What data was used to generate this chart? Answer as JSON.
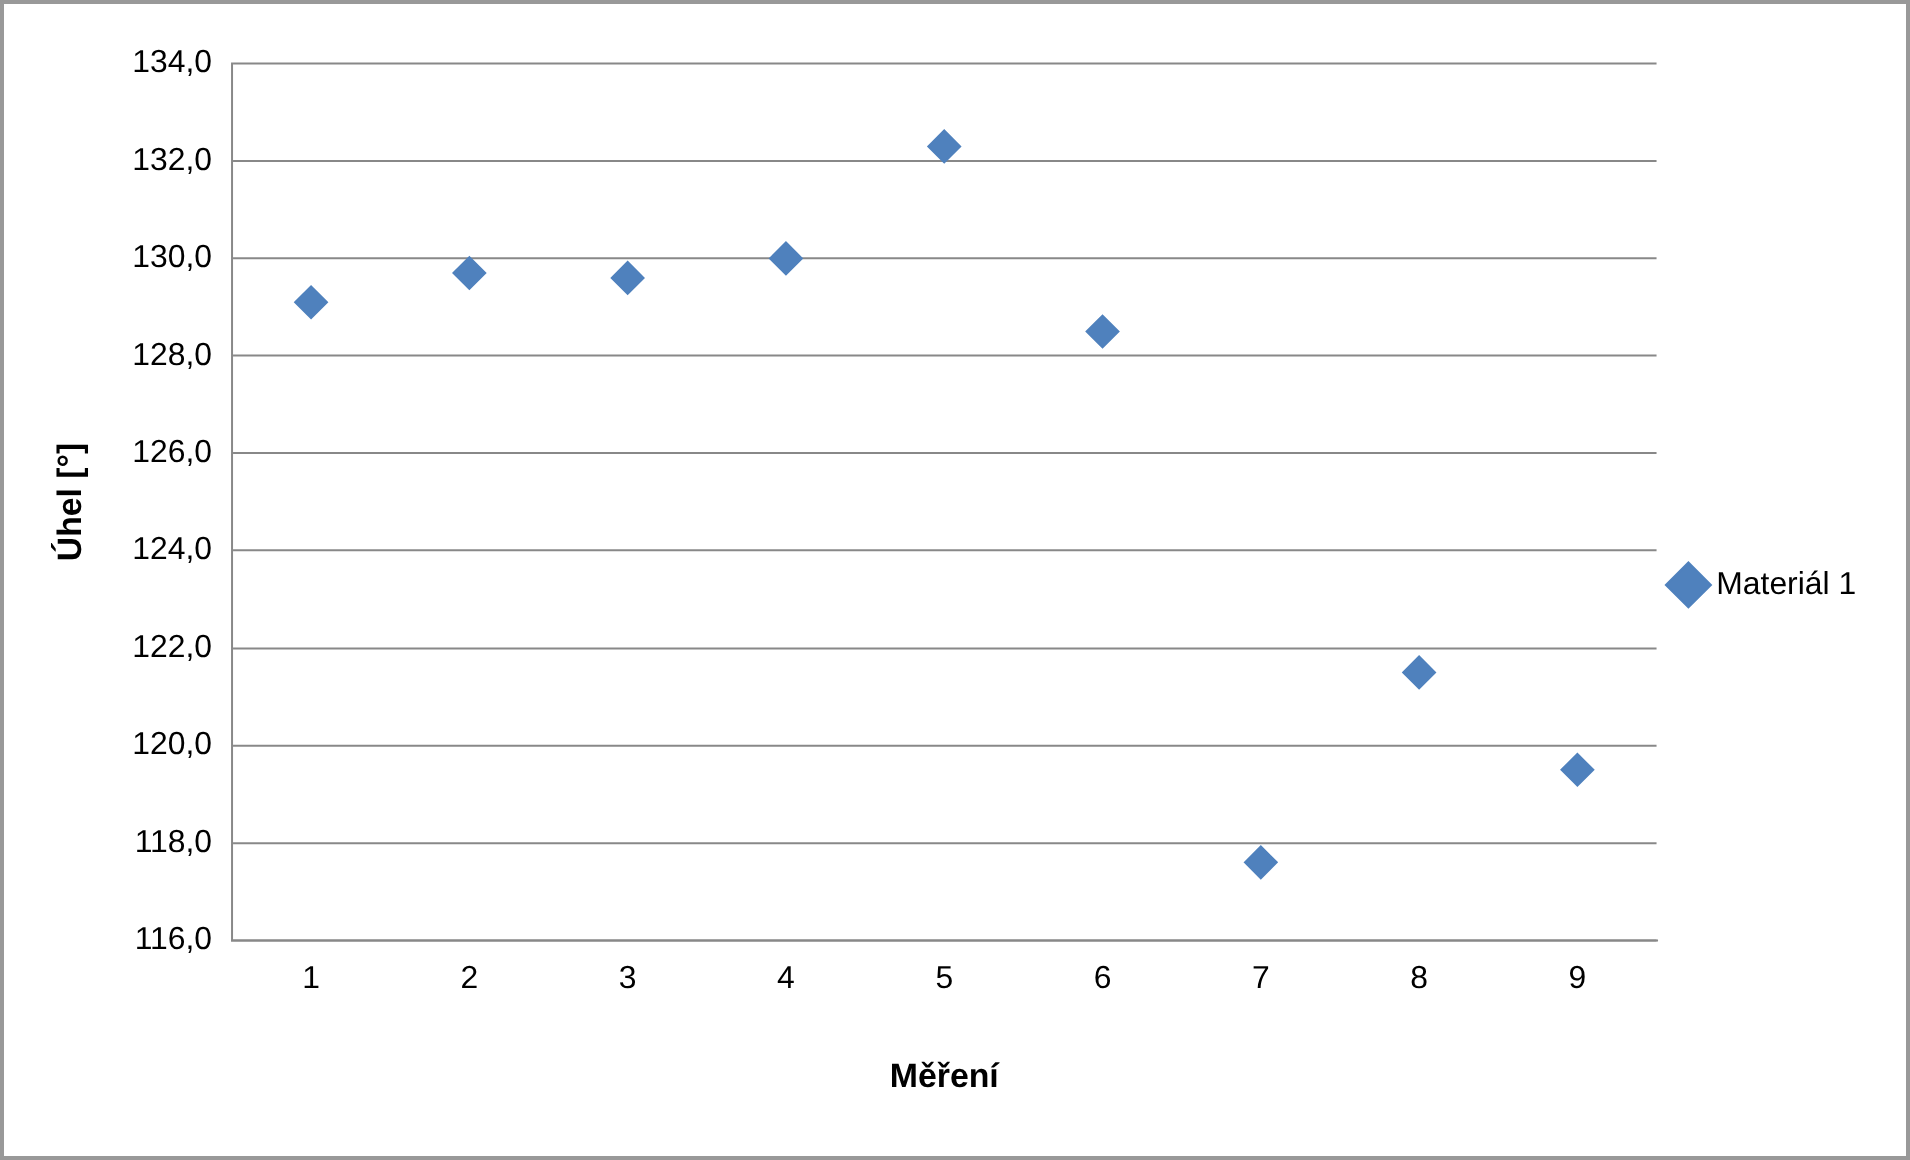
{
  "chart_data": {
    "type": "scatter",
    "xlabel": "Měření",
    "ylabel": "Úhel [°]",
    "categories": [
      "1",
      "2",
      "3",
      "4",
      "5",
      "6",
      "7",
      "8",
      "9"
    ],
    "series": [
      {
        "name": "Materiál 1",
        "color": "#4f81bd",
        "values": [
          129.1,
          129.7,
          129.6,
          130.0,
          132.3,
          128.5,
          117.6,
          121.5,
          119.5
        ]
      }
    ],
    "ylim": [
      116,
      134
    ],
    "yticks": [
      {
        "value": 116,
        "label": "116,0"
      },
      {
        "value": 118,
        "label": "118,0"
      },
      {
        "value": 120,
        "label": "120,0"
      },
      {
        "value": 122,
        "label": "122,0"
      },
      {
        "value": 124,
        "label": "124,0"
      },
      {
        "value": 126,
        "label": "126,0"
      },
      {
        "value": 128,
        "label": "128,0"
      },
      {
        "value": 130,
        "label": "130,0"
      },
      {
        "value": 132,
        "label": "132,0"
      },
      {
        "value": 134,
        "label": "134,0"
      }
    ],
    "grid": "y",
    "legend": "right",
    "marker": "diamond"
  }
}
